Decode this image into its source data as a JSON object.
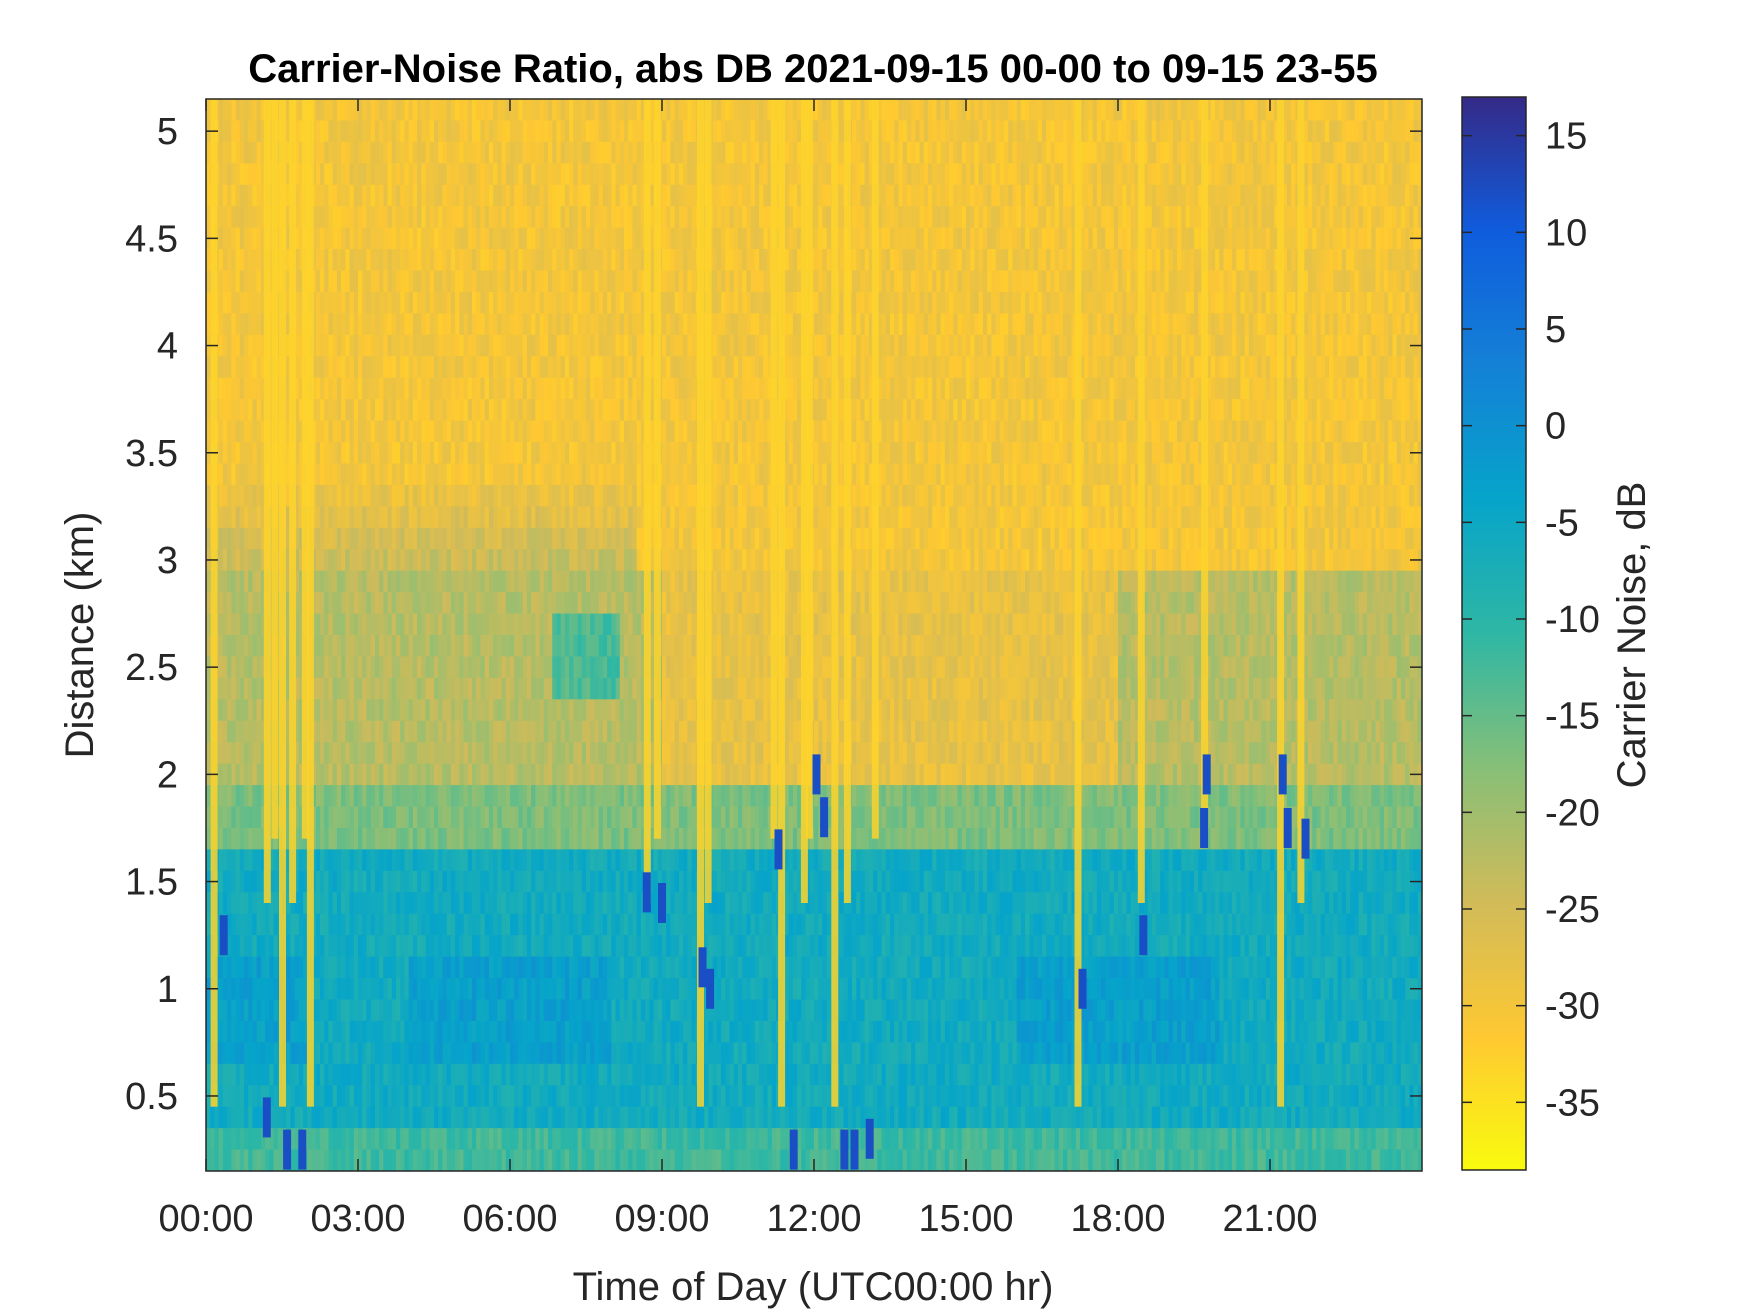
{
  "chart_data": {
    "type": "heatmap",
    "title": "Carrier-Noise Ratio, abs DB 2021-09-15 00-00 to 09-15 23-55",
    "xlabel": "Time of Day (UTC00:00 hr)",
    "ylabel": "Distance (km)",
    "colorbar_label": "Carrier Noise, dB",
    "x_ticks": [
      {
        "hour": 0,
        "label": "00:00"
      },
      {
        "hour": 3,
        "label": "03:00"
      },
      {
        "hour": 6,
        "label": "06:00"
      },
      {
        "hour": 9,
        "label": "09:00"
      },
      {
        "hour": 12,
        "label": "12:00"
      },
      {
        "hour": 15,
        "label": "15:00"
      },
      {
        "hour": 18,
        "label": "18:00"
      },
      {
        "hour": 21,
        "label": "21:00"
      }
    ],
    "xlim_hours": [
      0,
      24
    ],
    "y_ticks": [
      {
        "km": 0.5,
        "label": "0.5"
      },
      {
        "km": 1,
        "label": "1"
      },
      {
        "km": 1.5,
        "label": "1.5"
      },
      {
        "km": 2,
        "label": "2"
      },
      {
        "km": 2.5,
        "label": "2.5"
      },
      {
        "km": 3,
        "label": "3"
      },
      {
        "km": 3.5,
        "label": "3.5"
      },
      {
        "km": 4,
        "label": "4"
      },
      {
        "km": 4.5,
        "label": "4.5"
      },
      {
        "km": 5,
        "label": "5"
      }
    ],
    "ylim_km": [
      0.15,
      5.15
    ],
    "colorbar_ticks": [
      {
        "db": 15,
        "label": "15"
      },
      {
        "db": 10,
        "label": "10"
      },
      {
        "db": 5,
        "label": "5"
      },
      {
        "db": 0,
        "label": "0"
      },
      {
        "db": -5,
        "label": "-5"
      },
      {
        "db": -10,
        "label": "-10"
      },
      {
        "db": -15,
        "label": "-15"
      },
      {
        "db": -20,
        "label": "-20"
      },
      {
        "db": -25,
        "label": "-25"
      },
      {
        "db": -30,
        "label": "-30"
      },
      {
        "db": -35,
        "label": "-35"
      }
    ],
    "clim_db": [
      -38.5,
      17
    ],
    "colormap": "parula (reversed)",
    "colormap_stops": [
      "#352a87",
      "#0f5cdd",
      "#1481d6",
      "#06a4ca",
      "#2eb7a4",
      "#87bf77",
      "#d1bb59",
      "#fec832",
      "#f9fb0e"
    ],
    "grid": false,
    "field_summary": {
      "above_3km_db": -30,
      "band_2_to_3km_db": -22,
      "band_1_75_to_2km_db": -17,
      "below_1_6km_db": -6,
      "near_ground_db": -12,
      "dropout_streak_db": -33,
      "strong_return_db": 12
    },
    "vertical_streaks_hours": [
      0.15,
      1.2,
      1.35,
      1.5,
      1.7,
      1.95,
      2.05,
      8.7,
      8.9,
      9.75,
      9.9,
      11.2,
      11.35,
      11.8,
      11.9,
      12.4,
      12.65,
      13.2,
      17.2,
      18.45,
      19.7,
      21.2,
      21.6
    ],
    "strong_return_spots": [
      {
        "hour": 0.35,
        "km": 1.25
      },
      {
        "hour": 1.2,
        "km": 0.4
      },
      {
        "hour": 1.6,
        "km": 0.25
      },
      {
        "hour": 1.9,
        "km": 0.25
      },
      {
        "hour": 8.7,
        "km": 1.45
      },
      {
        "hour": 9.0,
        "km": 1.4
      },
      {
        "hour": 9.8,
        "km": 1.1
      },
      {
        "hour": 9.95,
        "km": 1.0
      },
      {
        "hour": 11.3,
        "km": 1.65
      },
      {
        "hour": 11.6,
        "km": 0.25
      },
      {
        "hour": 12.05,
        "km": 2.0
      },
      {
        "hour": 12.2,
        "km": 1.8
      },
      {
        "hour": 12.6,
        "km": 0.25
      },
      {
        "hour": 12.8,
        "km": 0.25
      },
      {
        "hour": 13.1,
        "km": 0.3
      },
      {
        "hour": 17.3,
        "km": 1.0
      },
      {
        "hour": 18.5,
        "km": 1.25
      },
      {
        "hour": 19.75,
        "km": 2.0
      },
      {
        "hour": 19.7,
        "km": 1.75
      },
      {
        "hour": 21.25,
        "km": 2.0
      },
      {
        "hour": 21.35,
        "km": 1.75
      },
      {
        "hour": 21.7,
        "km": 1.7
      }
    ]
  }
}
